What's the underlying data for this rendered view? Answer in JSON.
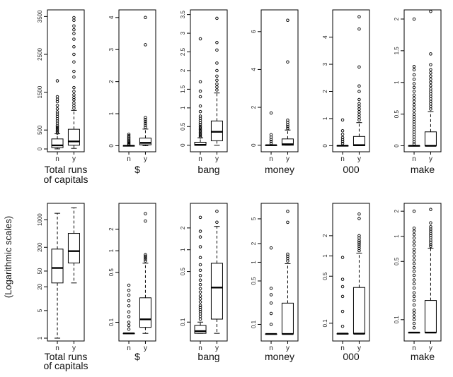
{
  "chart_data": {
    "type": "boxplot",
    "side_label": "(Logarithmic scales)",
    "categories": [
      "n",
      "y"
    ],
    "rows": [
      {
        "scale": "linear",
        "panels": [
          {
            "label_lines": [
              "Total runs",
              "of capitals"
            ],
            "ylim": [
              0,
              3600
            ],
            "ticks": [
              0,
              500,
              1500,
              2500,
              3500
            ],
            "boxes": [
              {
                "cat": "n",
                "min": 2,
                "q1": 35,
                "median": 95,
                "q3": 265,
                "max": 400,
                "outliers": [
                  420,
                  460,
                  500,
                  540,
                  580,
                  620,
                  680,
                  740,
                  800,
                  860,
                  920,
                  980,
                  1060,
                  1150,
                  1250,
                  1310,
                  1380,
                  1800
                ]
              },
              {
                "cat": "y",
                "min": 15,
                "q1": 100,
                "median": 200,
                "q3": 520,
                "max": 1020,
                "outliers": [
                  1080,
                  1150,
                  1220,
                  1300,
                  1360,
                  1430,
                  1520,
                  1620,
                  1900,
                  2050,
                  2300,
                  2500,
                  2700,
                  2900,
                  3050,
                  3150,
                  3250,
                  3400,
                  3470
                ]
              }
            ]
          },
          {
            "label_lines": [
              "$"
            ],
            "ylim": [
              -0.1,
              4.15
            ],
            "ticks": [
              0,
              1,
              2,
              3,
              4
            ],
            "boxes": [
              {
                "cat": "n",
                "min": 0,
                "q1": 0,
                "median": 0,
                "q3": 0,
                "max": 0,
                "outliers": [
                  0.03,
                  0.06,
                  0.09,
                  0.12,
                  0.15,
                  0.19,
                  0.23,
                  0.27,
                  0.31,
                  0.36
                ]
              },
              {
                "cat": "y",
                "min": 0,
                "q1": 0.03,
                "median": 0.09,
                "q3": 0.24,
                "max": 0.52,
                "outliers": [
                  0.58,
                  0.64,
                  0.7,
                  0.76,
                  0.82,
                  0.88,
                  3.15,
                  4.0
                ]
              }
            ]
          },
          {
            "label_lines": [
              "bang"
            ],
            "ylim": [
              -0.1,
              3.55
            ],
            "ticks": [
              0.0,
              0.5,
              1.0,
              1.5,
              2.0,
              2.5,
              3.0,
              3.5
            ],
            "boxes": [
              {
                "cat": "n",
                "min": 0,
                "q1": 0,
                "median": 0.01,
                "q3": 0.08,
                "max": 0.2,
                "outliers": [
                  0.22,
                  0.26,
                  0.3,
                  0.34,
                  0.38,
                  0.42,
                  0.46,
                  0.5,
                  0.55,
                  0.6,
                  0.66,
                  0.72,
                  0.78,
                  0.9,
                  1.05,
                  1.3,
                  1.45,
                  1.7,
                  2.85
                ]
              },
              {
                "cat": "y",
                "min": 0,
                "q1": 0.12,
                "median": 0.36,
                "q3": 0.65,
                "max": 1.4,
                "outliers": [
                  1.48,
                  1.56,
                  1.64,
                  1.74,
                  1.85,
                  2.0,
                  2.2,
                  2.55,
                  2.75,
                  3.4
                ]
              }
            ]
          },
          {
            "label_lines": [
              "money"
            ],
            "ylim": [
              -0.2,
              7.0
            ],
            "ticks": [
              0,
              2,
              4,
              6
            ],
            "boxes": [
              {
                "cat": "n",
                "min": 0,
                "q1": 0,
                "median": 0,
                "q3": 0,
                "max": 0,
                "outliers": [
                  0.1,
                  0.2,
                  0.3,
                  0.42,
                  0.55,
                  1.7
                ]
              },
              {
                "cat": "y",
                "min": 0,
                "q1": 0,
                "median": 0.05,
                "q3": 0.33,
                "max": 0.8,
                "outliers": [
                  0.88,
                  0.98,
                  1.08,
                  1.2,
                  1.32,
                  4.4,
                  6.6
                ]
              }
            ]
          },
          {
            "label_lines": [
              "000"
            ],
            "ylim": [
              -0.12,
              4.9
            ],
            "ticks": [
              0,
              1,
              2,
              3,
              4
            ],
            "boxes": [
              {
                "cat": "n",
                "min": 0,
                "q1": 0,
                "median": 0,
                "q3": 0,
                "max": 0,
                "outliers": [
                  0.08,
                  0.15,
                  0.22,
                  0.3,
                  0.42,
                  0.55,
                  0.95
                ]
              },
              {
                "cat": "y",
                "min": 0,
                "q1": 0,
                "median": 0.02,
                "q3": 0.34,
                "max": 0.85,
                "outliers": [
                  0.95,
                  1.05,
                  1.15,
                  1.25,
                  1.35,
                  1.45,
                  1.55,
                  1.7,
                  2.0,
                  2.2,
                  2.9,
                  4.3,
                  4.75
                ]
              }
            ]
          },
          {
            "label_lines": [
              "make"
            ],
            "ylim": [
              -0.05,
              2.1
            ],
            "ticks": [
              0.0,
              0.5,
              1.0,
              1.5,
              2.0
            ],
            "boxes": [
              {
                "cat": "n",
                "min": 0,
                "q1": 0,
                "median": 0,
                "q3": 0,
                "max": 0,
                "outliers": [
                  0.03,
                  0.06,
                  0.1,
                  0.14,
                  0.18,
                  0.22,
                  0.26,
                  0.3,
                  0.34,
                  0.38,
                  0.42,
                  0.46,
                  0.5,
                  0.55,
                  0.6,
                  0.65,
                  0.7,
                  0.75,
                  0.8,
                  0.86,
                  0.92,
                  0.98,
                  1.05,
                  1.12,
                  1.2,
                  1.25,
                  2.0
                ]
              },
              {
                "cat": "y",
                "min": 0,
                "q1": 0,
                "median": 0,
                "q3": 0.22,
                "max": 0.54,
                "outliers": [
                  0.58,
                  0.62,
                  0.66,
                  0.7,
                  0.74,
                  0.78,
                  0.82,
                  0.86,
                  0.9,
                  0.95,
                  1.0,
                  1.05,
                  1.1,
                  1.15,
                  1.2,
                  1.28,
                  1.45,
                  2.12
                ]
              }
            ]
          }
        ]
      },
      {
        "scale": "log",
        "panels": [
          {
            "label_lines": [
              "Total runs",
              "of capitals"
            ],
            "ylim": [
              1,
              2200
            ],
            "ticks": [
              1,
              5,
              20,
              50,
              200,
              1000
            ],
            "boxes": [
              {
                "cat": "n",
                "min": 1,
                "q1": 25,
                "median": 60,
                "q3": 180,
                "max": 1450,
                "outliers": []
              },
              {
                "cat": "y",
                "min": 25,
                "q1": 80,
                "median": 160,
                "q3": 450,
                "max": 2000,
                "outliers": []
              }
            ]
          },
          {
            "label_lines": [
              "$"
            ],
            "ylim": [
              0.06,
              4.2
            ],
            "ticks": [
              0.1,
              0.5,
              1,
              2
            ],
            "boxes": [
              {
                "cat": "n",
                "min": 0.07,
                "q1": 0.07,
                "median": 0.07,
                "q3": 0.07,
                "max": 0.07,
                "outliers": [
                  0.08,
                  0.09,
                  0.1,
                  0.12,
                  0.14,
                  0.17,
                  0.2,
                  0.24,
                  0.28,
                  0.33
                ]
              },
              {
                "cat": "y",
                "min": 0.07,
                "q1": 0.085,
                "median": 0.11,
                "q3": 0.22,
                "max": 0.67,
                "outliers": [
                  0.72,
                  0.76,
                  0.8,
                  0.84,
                  0.88,
                  2.6,
                  3.3
                ]
              }
            ]
          },
          {
            "label_lines": [
              "bang"
            ],
            "ylim": [
              0.06,
              4.0
            ],
            "ticks": [
              0.1,
              0.5,
              1,
              2
            ],
            "boxes": [
              {
                "cat": "n",
                "min": 0.07,
                "q1": 0.07,
                "median": 0.075,
                "q3": 0.09,
                "max": 0.1,
                "outliers": [
                  0.11,
                  0.12,
                  0.13,
                  0.14,
                  0.15,
                  0.16,
                  0.17,
                  0.19,
                  0.21,
                  0.23,
                  0.26,
                  0.29,
                  0.33,
                  0.38,
                  0.44,
                  0.52,
                  0.62,
                  0.78,
                  1.1,
                  1.5,
                  1.8,
                  2.8
                ]
              },
              {
                "cat": "y",
                "min": 0.07,
                "q1": 0.11,
                "median": 0.3,
                "q3": 0.65,
                "max": 2.1,
                "outliers": [
                  2.4,
                  3.4
                ]
              }
            ]
          },
          {
            "label_lines": [
              "money"
            ],
            "ylim": [
              0.06,
              8.0
            ],
            "ticks": [
              0.1,
              0.5,
              1,
              2,
              5
            ],
            "boxes": [
              {
                "cat": "n",
                "min": 0.07,
                "q1": 0.07,
                "median": 0.07,
                "q3": 0.07,
                "max": 0.07,
                "outliers": [
                  0.1,
                  0.15,
                  0.22,
                  0.3,
                  0.38,
                  1.7
                ]
              },
              {
                "cat": "y",
                "min": 0.07,
                "q1": 0.07,
                "median": 0.07,
                "q3": 0.22,
                "max": 0.95,
                "outliers": [
                  1.05,
                  1.15,
                  1.25,
                  1.35,
                  4.4,
                  6.6
                ]
              }
            ]
          },
          {
            "label_lines": [
              "000"
            ],
            "ylim": [
              0.06,
              5.5
            ],
            "ticks": [
              0.1,
              0.5,
              1,
              2
            ],
            "boxes": [
              {
                "cat": "n",
                "min": 0.07,
                "q1": 0.07,
                "median": 0.07,
                "q3": 0.07,
                "max": 0.07,
                "outliers": [
                  0.09,
                  0.15,
                  0.25,
                  0.35,
                  0.45,
                  0.95
                ]
              },
              {
                "cat": "y",
                "min": 0.07,
                "q1": 0.07,
                "median": 0.07,
                "q3": 0.34,
                "max": 1.1,
                "outliers": [
                  1.2,
                  1.3,
                  1.4,
                  1.5,
                  1.6,
                  1.7,
                  1.85,
                  2.0,
                  3.6,
                  4.2
                ]
              }
            ]
          },
          {
            "label_lines": [
              "make"
            ],
            "ylim": [
              0.06,
              2.3
            ],
            "ticks": [
              0.1,
              0.5,
              1,
              2
            ],
            "boxes": [
              {
                "cat": "n",
                "min": 0.07,
                "q1": 0.07,
                "median": 0.07,
                "q3": 0.07,
                "max": 0.07,
                "outliers": [
                  0.08,
                  0.09,
                  0.1,
                  0.11,
                  0.12,
                  0.13,
                  0.15,
                  0.17,
                  0.19,
                  0.21,
                  0.24,
                  0.27,
                  0.3,
                  0.34,
                  0.38,
                  0.42,
                  0.47,
                  0.52,
                  0.58,
                  0.64,
                  0.7,
                  0.78,
                  0.86,
                  0.95,
                  1.05,
                  1.15,
                  1.25,
                  2.0
                ]
              },
              {
                "cat": "y",
                "min": 0.07,
                "q1": 0.07,
                "median": 0.07,
                "q3": 0.17,
                "max": 0.72,
                "outliers": [
                  0.76,
                  0.8,
                  0.85,
                  0.9,
                  0.96,
                  1.02,
                  1.08,
                  1.15,
                  1.22,
                  1.3,
                  1.45,
                  2.1
                ]
              }
            ]
          }
        ]
      }
    ]
  }
}
